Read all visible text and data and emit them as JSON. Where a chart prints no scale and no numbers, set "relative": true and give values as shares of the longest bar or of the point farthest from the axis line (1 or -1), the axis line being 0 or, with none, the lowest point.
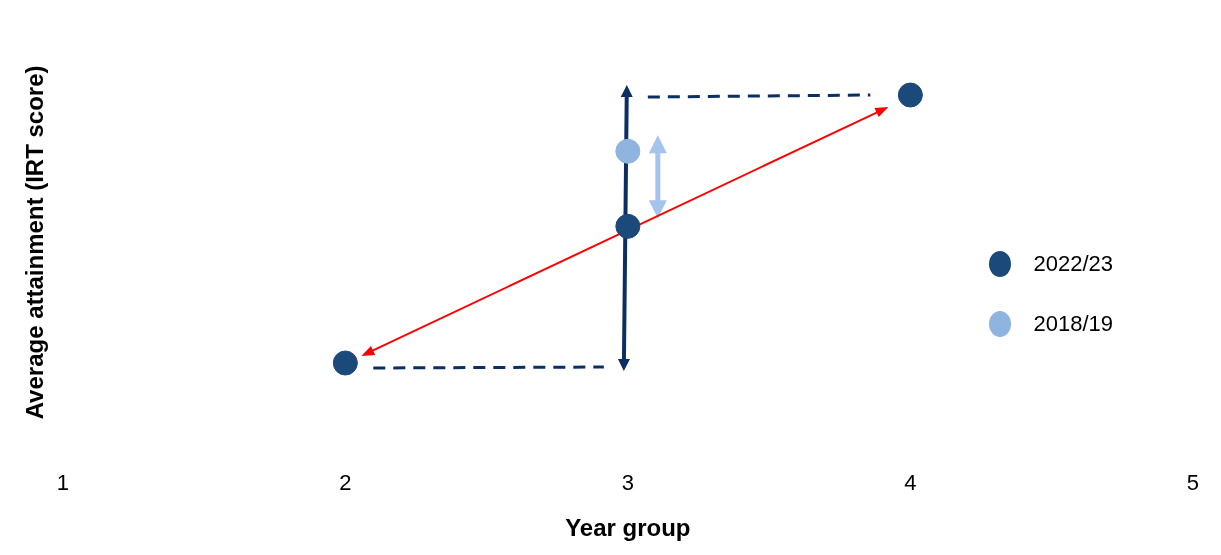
{
  "chart_data": {
    "type": "scatter",
    "xlabel": "Year group",
    "ylabel": "Average attainment (IRT score)",
    "relative": true,
    "xlim": [
      1,
      5
    ],
    "xticks": [
      1,
      2,
      3,
      4,
      5
    ],
    "grid": false,
    "legend": "right",
    "marker": "circle",
    "series": [
      {
        "name": "2022/23",
        "color": "#1b4a7a",
        "x": [
          2,
          3,
          4
        ],
        "values": [
          0,
          0.51,
          1
        ]
      },
      {
        "name": "2018/19",
        "color": "#8fb4e0",
        "x": [
          3
        ],
        "values": [
          0.79
        ]
      }
    ]
  }
}
